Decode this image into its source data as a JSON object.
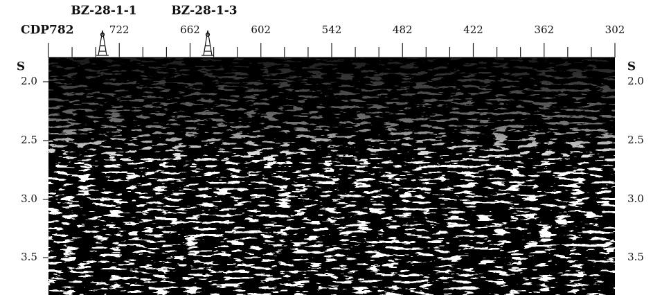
{
  "wells": [
    "BZ-28-1-1",
    "BZ-28-1-3"
  ],
  "cdp_labels": [
    "CDP782",
    "722",
    "662",
    "602",
    "542",
    "482",
    "422",
    "362",
    "302"
  ],
  "time_unit": "S",
  "time_labels": [
    "2.0",
    "2.5",
    "3.0",
    "3.5"
  ]
}
